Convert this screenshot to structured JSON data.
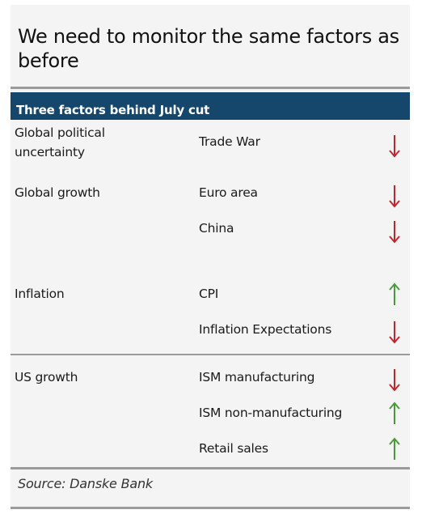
{
  "title": "We need to monitor the same factors as before",
  "table": {
    "header": "Three factors behind July cut",
    "groups": [
      {
        "factor": "Global political uncertainty",
        "rows": [
          {
            "indicator": "Trade War",
            "direction": "down"
          }
        ]
      },
      {
        "factor": "Global growth",
        "rows": [
          {
            "indicator": "Euro area",
            "direction": "down"
          },
          {
            "indicator": "China",
            "direction": "down"
          }
        ]
      },
      {
        "factor": "Inflation",
        "rows": [
          {
            "indicator": "CPI",
            "direction": "up"
          },
          {
            "indicator": "Inflation Expectations",
            "direction": "down"
          }
        ]
      },
      {
        "factor": "US growth",
        "rows": [
          {
            "indicator": "ISM manufacturing",
            "direction": "down"
          },
          {
            "indicator": "ISM non-manufacturing",
            "direction": "up"
          },
          {
            "indicator": "Retail sales",
            "direction": "up"
          }
        ]
      }
    ]
  },
  "source": "Source: Danske Bank",
  "colors": {
    "header_bg": "#15476d",
    "arrow_down": "#c0272d",
    "arrow_up": "#4a9a3a"
  },
  "icons": {
    "down": "arrow-down-icon",
    "up": "arrow-up-icon"
  }
}
